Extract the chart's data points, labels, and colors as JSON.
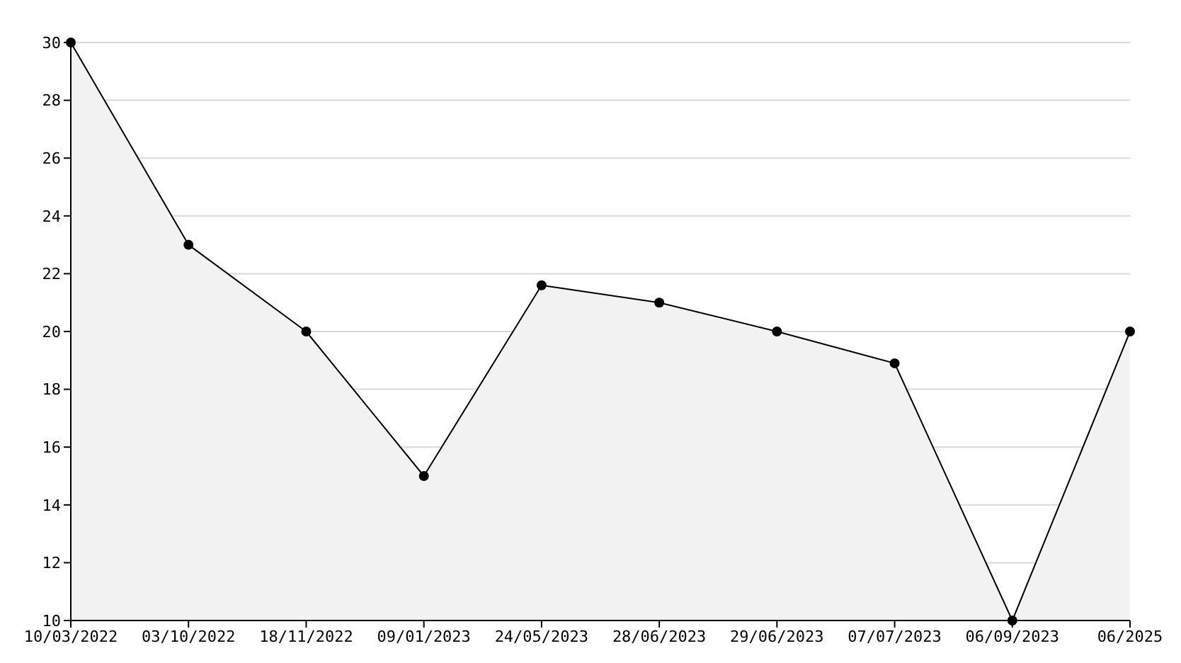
{
  "chart_data": {
    "type": "area",
    "categories": [
      "10/03/2022",
      "03/10/2022",
      "18/11/2022",
      "09/01/2023",
      "24/05/2023",
      "28/06/2023",
      "29/06/2023",
      "07/07/2023",
      "06/09/2023",
      "06/2025"
    ],
    "series": [
      {
        "color": "#000000",
        "values": [
          30,
          23,
          20,
          15,
          21.6,
          21,
          20,
          18.9,
          10,
          20
        ]
      }
    ],
    "ylim": [
      10,
      30
    ],
    "yticks": [
      10,
      12,
      14,
      16,
      18,
      20,
      22,
      24,
      26,
      28,
      30
    ],
    "grid": "y",
    "marker": "circle",
    "line_style": "solid",
    "legend": false
  }
}
